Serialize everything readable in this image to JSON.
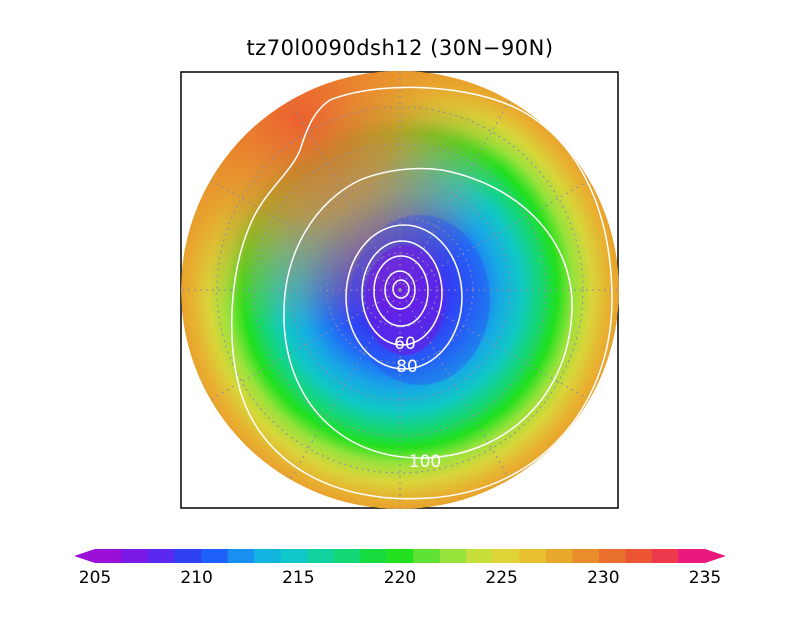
{
  "title": "tz70l0090dsh12 (30N−90N)",
  "map": {
    "projection": "north-polar-stereographic",
    "lat_range": [
      30,
      90
    ],
    "variable_units_note": "",
    "contour_labels": [
      "60",
      "80",
      "100"
    ],
    "graticule": "dotted grey"
  },
  "colorbar": {
    "min": 205,
    "max": 235,
    "ticks": [
      "205",
      "210",
      "215",
      "220",
      "225",
      "230",
      "235"
    ],
    "colors": [
      "#9a10d6",
      "#7a18e6",
      "#5a28f0",
      "#3040f5",
      "#1e60f8",
      "#1890f0",
      "#12b4e0",
      "#10c8c8",
      "#12d2a0",
      "#14d878",
      "#16dc40",
      "#22e01e",
      "#60e234",
      "#98e23c",
      "#c8de3a",
      "#e0d438",
      "#e8c030",
      "#e8a82c",
      "#e88c2c",
      "#ea7030",
      "#ec5434",
      "#ec3a4c",
      "#e8187c"
    ]
  }
}
